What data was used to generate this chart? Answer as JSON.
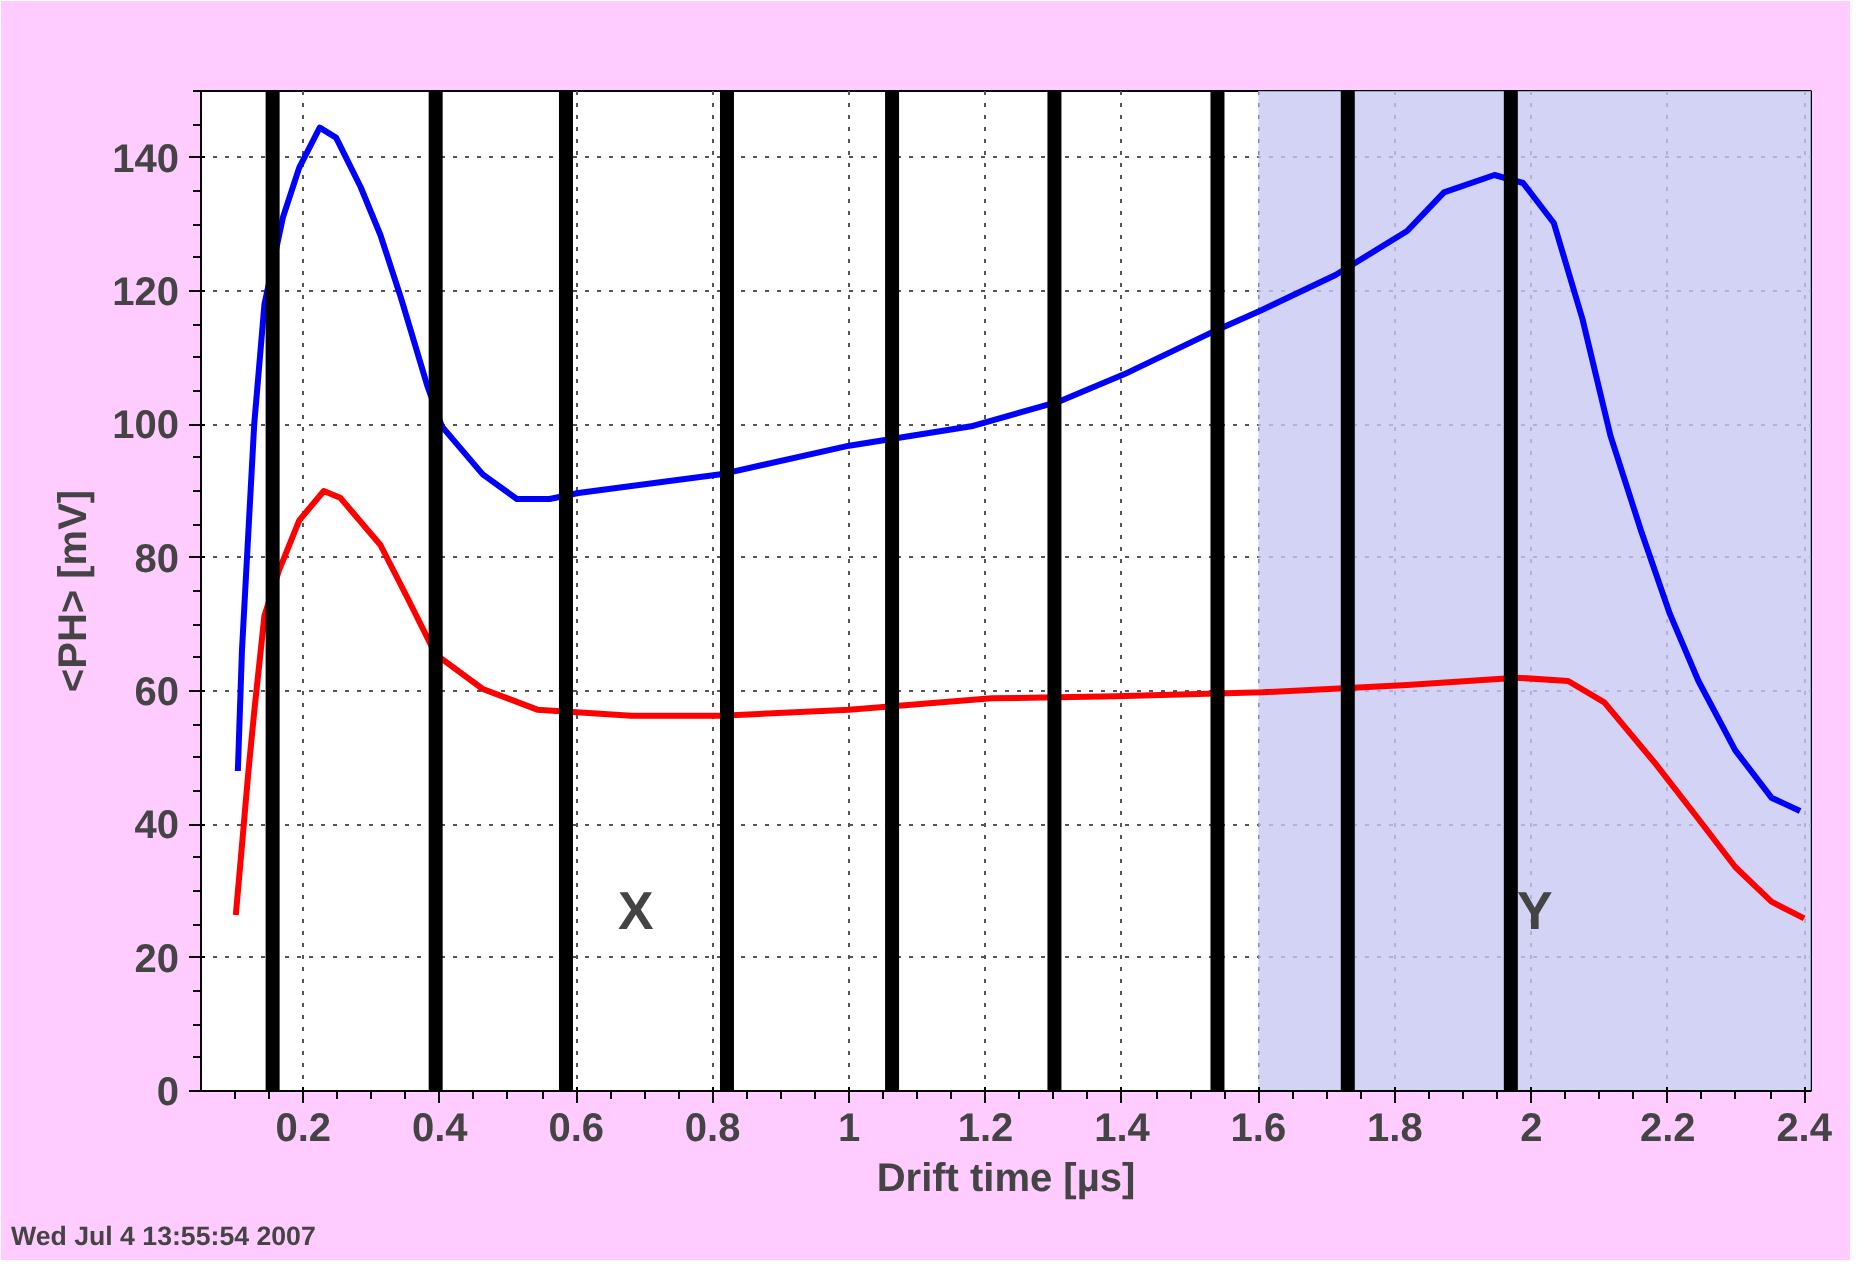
{
  "chart_data": {
    "type": "line",
    "xlabel": "Drift time [µs]",
    "ylabel": "<PH> [mV]",
    "xlim": [
      0.05,
      2.41
    ],
    "ylim": [
      0,
      150
    ],
    "xticks": [
      0.2,
      0.4,
      0.6,
      0.8,
      1,
      1.2,
      1.4,
      1.6,
      1.8,
      2,
      2.2,
      2.4
    ],
    "yticks": [
      0,
      20,
      40,
      60,
      80,
      100,
      120,
      140
    ],
    "grid": true,
    "line_style": "solid",
    "series": [
      {
        "color": "#0000ff",
        "x": [
          0.104,
          0.11,
          0.128,
          0.143,
          0.17,
          0.194,
          0.224,
          0.248,
          0.284,
          0.313,
          0.343,
          0.382,
          0.403,
          0.463,
          0.513,
          0.561,
          0.603,
          0.812,
          1.0,
          1.179,
          1.307,
          1.403,
          1.54,
          1.606,
          1.713,
          1.818,
          1.872,
          1.946,
          1.988,
          2.033,
          2.075,
          2.116,
          2.161,
          2.203,
          2.245,
          2.299,
          2.352,
          2.394
        ],
        "values": [
          48,
          66,
          100,
          118,
          131,
          138.5,
          144.5,
          143,
          135.6,
          128.4,
          119,
          105.7,
          99.7,
          92.5,
          88.8,
          88.8,
          89.7,
          92.5,
          96.8,
          99.7,
          103.4,
          107.5,
          114.2,
          117.2,
          122.4,
          129,
          134.8,
          137.4,
          136.2,
          130.2,
          115.8,
          98.3,
          84,
          71.6,
          61.5,
          51.1,
          44,
          42
        ]
      },
      {
        "color": "#ff0000",
        "x": [
          0.101,
          0.11,
          0.119,
          0.128,
          0.143,
          0.164,
          0.194,
          0.23,
          0.254,
          0.313,
          0.352,
          0.394,
          0.463,
          0.543,
          0.681,
          0.812,
          1.0,
          1.209,
          1.391,
          1.606,
          1.818,
          1.979,
          2.054,
          2.107,
          2.182,
          2.245,
          2.299,
          2.352,
          2.4
        ],
        "values": [
          26.4,
          36.8,
          47.4,
          56.9,
          71.3,
          78,
          85.6,
          90,
          89,
          81.9,
          74.1,
          65.5,
          60.3,
          57.2,
          56.3,
          56.3,
          57.2,
          58.9,
          59.2,
          59.8,
          60.9,
          62,
          61.5,
          58.3,
          49.1,
          40.8,
          33.6,
          28.4,
          25.9
        ]
      }
    ],
    "bands": [
      {
        "axis": "x",
        "from": 1.6,
        "to": 2.41,
        "color": "#c8c8f4",
        "label": "Y"
      }
    ],
    "ref_lines": [
      {
        "axis": "x",
        "value": 0.155,
        "color": "#000000"
      },
      {
        "axis": "x",
        "value": 0.394,
        "color": "#000000"
      },
      {
        "axis": "x",
        "value": 0.585,
        "color": "#000000"
      },
      {
        "axis": "x",
        "value": 0.821,
        "color": "#000000"
      },
      {
        "axis": "x",
        "value": 1.063,
        "color": "#000000"
      },
      {
        "axis": "x",
        "value": 1.301,
        "color": "#000000"
      },
      {
        "axis": "x",
        "value": 1.54,
        "color": "#000000"
      },
      {
        "axis": "x",
        "value": 1.731,
        "color": "#000000"
      },
      {
        "axis": "x",
        "value": 1.97,
        "color": "#000000"
      }
    ],
    "annotations": [
      "X",
      "Wed Jul  4 13:55:54 2007"
    ]
  }
}
